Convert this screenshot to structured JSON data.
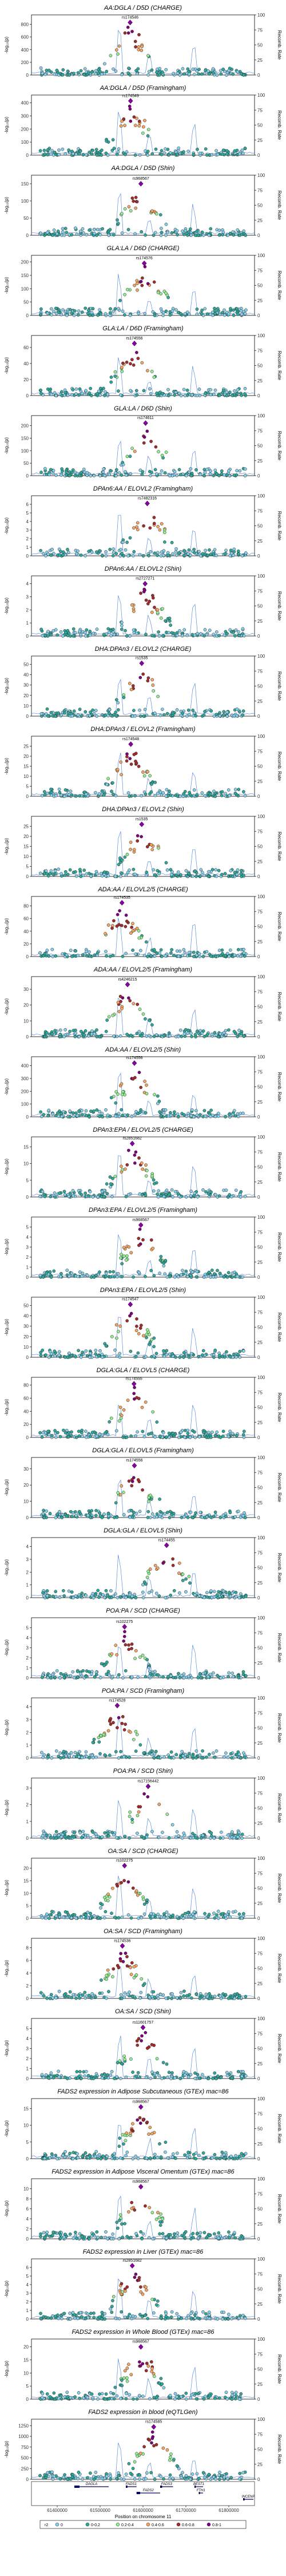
{
  "chart_data": {
    "type": "scatter",
    "x_axis": {
      "label": "Position on chromosome 11",
      "ticks": [
        61400000,
        61500000,
        61600000,
        61700000,
        61800000
      ],
      "tick_labels": [
        "61400000",
        "61500000",
        "61600000",
        "61700000",
        "61800000"
      ],
      "range": [
        61340000,
        61860000
      ]
    },
    "y_axis_label": "-log₁₀(p)",
    "y2_axis": {
      "label": "Recomb. Rate",
      "ticks": [
        0,
        25,
        50,
        75,
        100
      ]
    },
    "legend": {
      "title": "r2",
      "placement": "bottom",
      "items": [
        {
          "label": "0",
          "color": "#87ceeb"
        },
        {
          "label": "0-0.2",
          "color": "#2ea89a"
        },
        {
          "label": "0.2-0.4",
          "color": "#90ee90"
        },
        {
          "label": "0.4-0.6",
          "color": "#f4a460"
        },
        {
          "label": "0.6-0.8",
          "color": "#a52a2a"
        },
        {
          "label": "0.8-1",
          "color": "#800080"
        }
      ]
    },
    "genes": [
      {
        "name": "DAGLA",
        "start": 61440000,
        "end": 61520000,
        "row": 0
      },
      {
        "name": "FADS1",
        "start": 61560000,
        "end": 61585000,
        "row": 0
      },
      {
        "name": "FADS2",
        "start": 61585000,
        "end": 61640000,
        "row": 1
      },
      {
        "name": "FADS3",
        "start": 61640000,
        "end": 61670000,
        "row": 0
      },
      {
        "name": "BEST1",
        "start": 61720000,
        "end": 61740000,
        "row": 0
      },
      {
        "name": "FTH1",
        "start": 61730000,
        "end": 61740000,
        "row": 1
      },
      {
        "name": "INCENP",
        "start": 61890000,
        "end": 61920000,
        "row": 2
      }
    ],
    "panels": [
      {
        "title": "AA:DGLA / D5D (CHARGE)",
        "lead_snp": "rs174546",
        "lead_x": 61570000,
        "y_ticks": [
          0,
          200,
          400,
          600,
          800
        ],
        "y_max": 950,
        "lead_y": 830
      },
      {
        "title": "AA:DGLA / D5D (Framingham)",
        "lead_snp": "rs174549",
        "lead_x": 61571000,
        "y_ticks": [
          0,
          100,
          200,
          300,
          400
        ],
        "y_max": 460,
        "lead_y": 415
      },
      {
        "title": "AA:DGLA / D5D (Shin)",
        "lead_snp": "rs968567",
        "lead_x": 61595000,
        "y_ticks": [
          0,
          50,
          100,
          150
        ],
        "y_max": 175,
        "lead_y": 150
      },
      {
        "title": "GLA:LA / D6D (CHARGE)",
        "lead_snp": "rs174576",
        "lead_x": 61603000,
        "y_ticks": [
          0,
          50,
          100,
          150,
          200
        ],
        "y_max": 225,
        "lead_y": 195
      },
      {
        "title": "GLA:LA / D6D (Framingham)",
        "lead_snp": "rs174556",
        "lead_x": 61580000,
        "y_ticks": [
          0,
          20,
          40,
          60
        ],
        "y_max": 75,
        "lead_y": 65
      },
      {
        "title": "GLA:LA / D6D (Shin)",
        "lead_snp": "rs174611",
        "lead_x": 61606000,
        "y_ticks": [
          0,
          50,
          100,
          150,
          200
        ],
        "y_max": 240,
        "lead_y": 210
      },
      {
        "title": "DPAn6:AA / ELOVL2 (Framingham)",
        "lead_snp": "rs7482316",
        "lead_x": 61610000,
        "y_ticks": [
          0,
          1,
          2,
          3,
          4,
          5,
          6
        ],
        "y_max": 7,
        "lead_y": 6.1
      },
      {
        "title": "DPAn6:AA / ELOVL2 (Shin)",
        "lead_snp": "rs2727271",
        "lead_x": 61605000,
        "y_ticks": [
          0,
          1,
          2,
          3,
          4
        ],
        "y_max": 4.6,
        "lead_y": 4.0
      },
      {
        "title": "DHA:DPAn3 / ELOVL2 (CHARGE)",
        "lead_snp": "rs1535",
        "lead_x": 61597000,
        "y_ticks": [
          0,
          10,
          20,
          30,
          40,
          50
        ],
        "y_max": 58,
        "lead_y": 51
      },
      {
        "title": "DHA:DPAn3 / ELOVL2 (Framingham)",
        "lead_snp": "rs174548",
        "lead_x": 61571500,
        "y_ticks": [
          0,
          5,
          10,
          15,
          20,
          25
        ],
        "y_max": 30,
        "lead_y": 26
      },
      {
        "title": "DHA:DPAn3 / ELOVL2 (Shin)",
        "lead_snp": "rs1535",
        "lead_x": 61597000,
        "y_ticks": [
          0,
          5,
          10,
          15,
          20,
          25
        ],
        "y_max": 30,
        "lead_y": 26
      },
      {
        "title": "ADA:AA / ELOVL2/5 (CHARGE)",
        "lead_snp": "rs174535",
        "lead_x": 61551000,
        "y_ticks": [
          0,
          20,
          40,
          60,
          80
        ],
        "y_max": 95,
        "lead_y": 85
      },
      {
        "title": "ADA:AA / ELOVL2/5 (Framingham)",
        "lead_snp": "rs4246215",
        "lead_x": 61564000,
        "y_ticks": [
          0,
          10,
          20,
          30
        ],
        "y_max": 38,
        "lead_y": 33
      },
      {
        "title": "ADA:AA / ELOVL2/5 (Shin)",
        "lead_snp": "rs174556",
        "lead_x": 61580000,
        "y_ticks": [
          0,
          100,
          200,
          300,
          400
        ],
        "y_max": 470,
        "lead_y": 420
      },
      {
        "title": "DPAn3:EPA / ELOVL2/5 (CHARGE)",
        "lead_snp": "rs2851682",
        "lead_x": 61575000,
        "y_ticks": [
          0,
          5,
          10,
          15
        ],
        "y_max": 18,
        "lead_y": 16
      },
      {
        "title": "DPAn3:EPA / ELOVL2/5 (Framingham)",
        "lead_snp": "rs968567",
        "lead_x": 61595000,
        "y_ticks": [
          0,
          1,
          2,
          3,
          4,
          5
        ],
        "y_max": 6,
        "lead_y": 5.2
      },
      {
        "title": "DPAn3:EPA / ELOVL2/5 (Shin)",
        "lead_snp": "rs174547",
        "lead_x": 61570500,
        "y_ticks": [
          0,
          10,
          20,
          30,
          40,
          50
        ],
        "y_max": 58,
        "lead_y": 51
      },
      {
        "title": "DGLA:GLA / ELOVL5 (CHARGE)",
        "lead_snp": "rs174555",
        "lead_x": 61579000,
        "y_ticks": [
          0,
          20,
          40,
          60,
          80
        ],
        "y_max": 92,
        "lead_y": 82
      },
      {
        "title": "DGLA:GLA / ELOVL5 (Framingham)",
        "lead_snp": "rs174556",
        "lead_x": 61580000,
        "y_ticks": [
          0,
          10,
          20,
          30
        ],
        "y_max": 37,
        "lead_y": 32
      },
      {
        "title": "DGLA:GLA / ELOVL5 (Shin)",
        "lead_snp": "rs174455",
        "lead_x": 61655000,
        "y_ticks": [
          0,
          1,
          2,
          3,
          4
        ],
        "y_max": 4.7,
        "lead_y": 4.1
      },
      {
        "title": "POA:PA / SCD (CHARGE)",
        "lead_snp": "rs102275",
        "lead_x": 61557000,
        "y_ticks": [
          0,
          1,
          2,
          3,
          4,
          5
        ],
        "y_max": 6,
        "lead_y": 5.1
      },
      {
        "title": "POA:PA / SCD (Framingham)",
        "lead_snp": "rs174528",
        "lead_x": 61540000,
        "y_ticks": [
          0,
          1,
          2,
          3,
          4
        ],
        "y_max": 4.7,
        "lead_y": 4.1
      },
      {
        "title": "POA:PA / SCD (Shin)",
        "lead_snp": "rs17156442",
        "lead_x": 61612000,
        "y_ticks": [
          0,
          1,
          2,
          3
        ],
        "y_max": 3.6,
        "lead_y": 3.1
      },
      {
        "title": "OA:SA / SCD (CHARGE)",
        "lead_snp": "rs102275",
        "lead_x": 61557000,
        "y_ticks": [
          0,
          5,
          10,
          15,
          20
        ],
        "y_max": 24,
        "lead_y": 21
      },
      {
        "title": "OA:SA / SCD (Framingham)",
        "lead_snp": "rs174536",
        "lead_x": 61552000,
        "y_ticks": [
          0,
          2,
          4,
          6,
          8
        ],
        "y_max": 9.5,
        "lead_y": 8.3
      },
      {
        "title": "OA:SA / SCD (Shin)",
        "lead_snp": "rs11601757",
        "lead_x": 61600000,
        "y_ticks": [
          0,
          1,
          2,
          3,
          4,
          5
        ],
        "y_max": 6,
        "lead_y": 5.1
      },
      {
        "title": "FADS2 expression in Adipose Subcutaneous (GTEx) mac=86",
        "lead_snp": "rs968567",
        "lead_x": 61595000,
        "y_ticks": [
          0,
          5,
          10,
          15
        ],
        "y_max": 18,
        "lead_y": 15.5
      },
      {
        "title": "FADS2 expression in Adipose Visceral Omentum (GTEx) mac=86",
        "lead_snp": "rs968567",
        "lead_x": 61595000,
        "y_ticks": [
          0,
          2,
          4,
          6,
          8,
          10
        ],
        "y_max": 12,
        "lead_y": 10.4
      },
      {
        "title": "FADS2 expression in Liver (GTEx) mac=86",
        "lead_snp": "rs2851682",
        "lead_x": 61575000,
        "y_ticks": [
          0,
          1,
          2,
          3,
          4,
          5,
          6
        ],
        "y_max": 7,
        "lead_y": 6.2
      },
      {
        "title": "FADS2 expression in Whole Blood (GTEx) mac=86",
        "lead_snp": "rs968567",
        "lead_x": 61595000,
        "y_ticks": [
          0,
          5,
          10,
          15,
          20
        ],
        "y_max": 23,
        "lead_y": 20
      },
      {
        "title": "FADS2 expression in blood (eQTLGen)",
        "lead_snp": "rs174585",
        "lead_x": 61625000,
        "y_ticks": [
          0,
          250,
          500,
          750,
          1000,
          1250
        ],
        "y_max": 1400,
        "lead_y": 1220
      }
    ]
  }
}
